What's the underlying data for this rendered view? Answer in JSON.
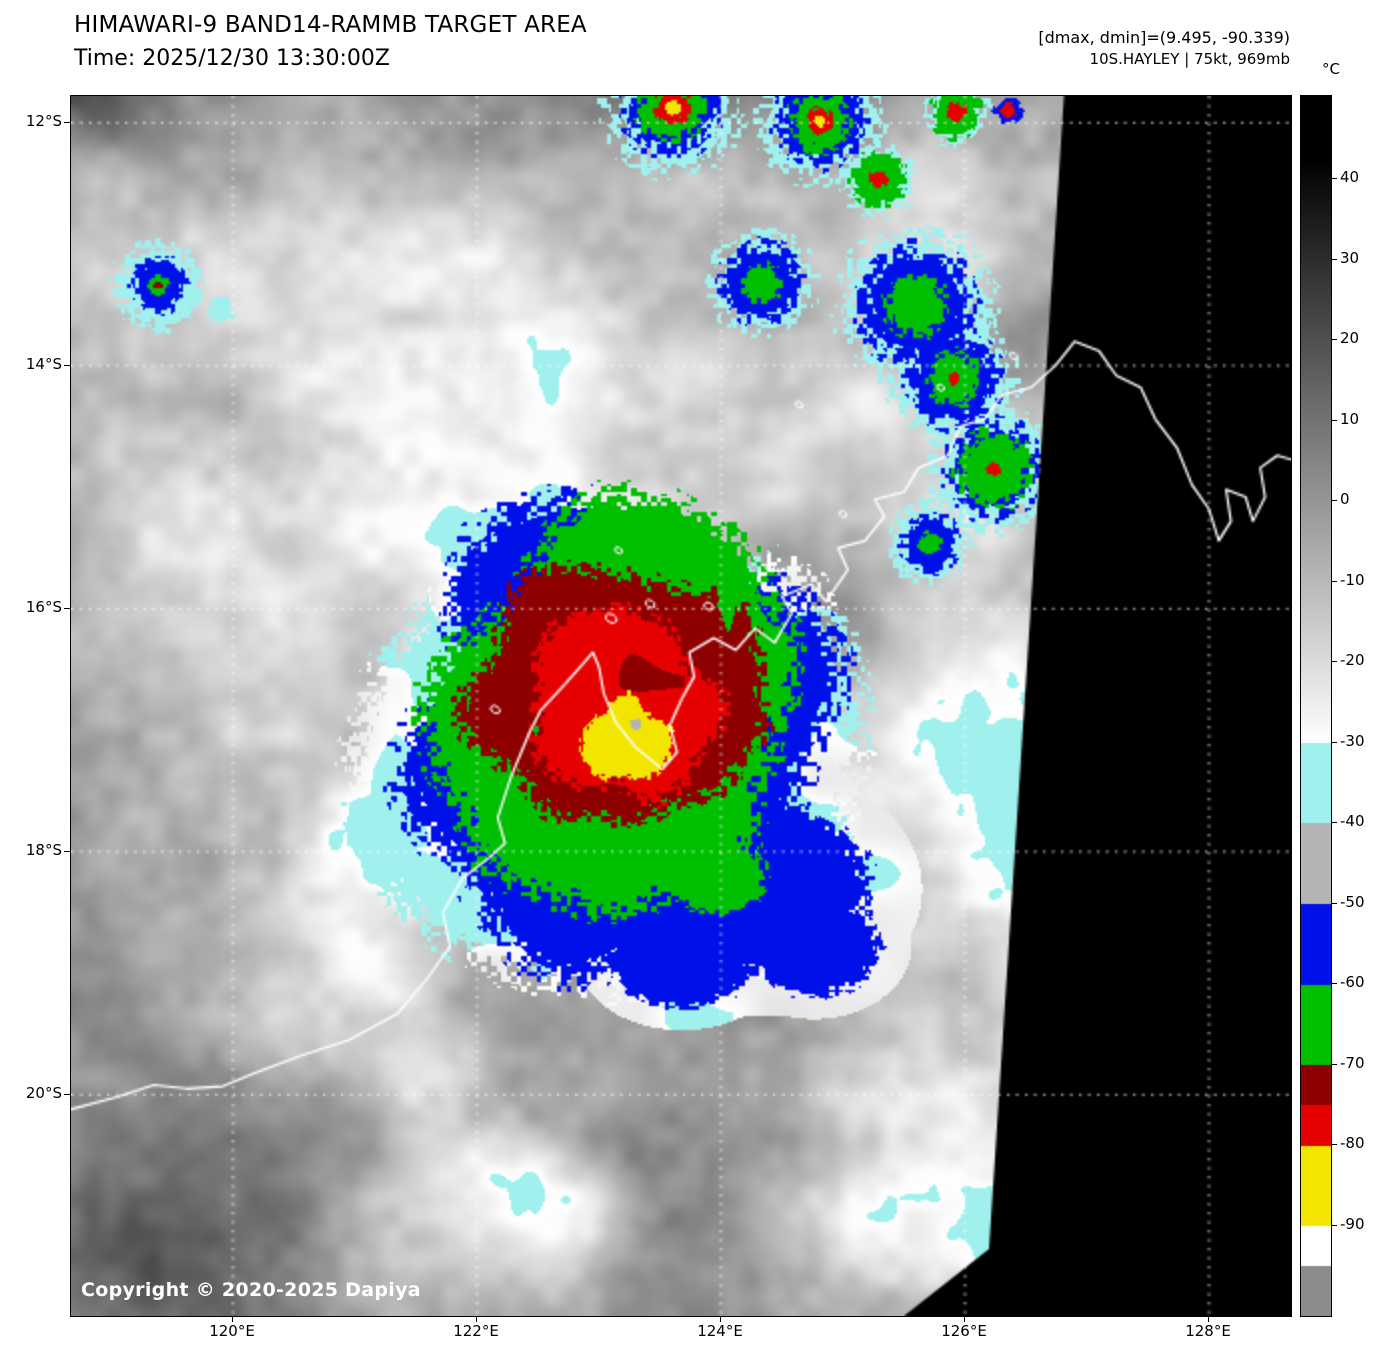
{
  "header": {
    "title": "HIMAWARI-9 BAND14-RAMMB TARGET AREA",
    "time_line": "Time: 2025/12/30 13:30:00Z",
    "dmax_dmin": "[dmax, dmin]=(9.495, -90.339)",
    "storm_info": "10S.HAYLEY | 75kt, 969mb"
  },
  "map": {
    "copyright": "Copyright © 2020-2025 Dapiya",
    "lat_tick_labels": [
      "12°S",
      "14°S",
      "16°S",
      "18°S",
      "20°S"
    ],
    "lon_tick_labels": [
      "120°E",
      "122°E",
      "124°E",
      "126°E",
      "128°E"
    ]
  },
  "colorbar": {
    "unit": "°C",
    "tick_values": [
      40,
      30,
      20,
      10,
      0,
      -10,
      -20,
      -30,
      -40,
      -50,
      -60,
      -70,
      -80,
      -90
    ],
    "segments": [
      {
        "from": 52,
        "to": 43,
        "color": "#000000"
      },
      {
        "from": 43,
        "to": -30,
        "type": "gradient",
        "color_start": "#000000",
        "color_end": "#ffffff"
      },
      {
        "from": -30,
        "to": -40,
        "color": "#a0f0ee"
      },
      {
        "from": -40,
        "to": -50,
        "color": "#b4b4b4"
      },
      {
        "from": -50,
        "to": -60,
        "color": "#0010e8"
      },
      {
        "from": -60,
        "to": -70,
        "color": "#00be00"
      },
      {
        "from": -70,
        "to": -75,
        "color": "#8e0000"
      },
      {
        "from": -75,
        "to": -80,
        "color": "#e60000"
      },
      {
        "from": -80,
        "to": -90,
        "color": "#f2e600"
      },
      {
        "from": -90,
        "to": -95,
        "color": "#ffffff"
      },
      {
        "from": -95,
        "to": -102,
        "color": "#8c8c8c"
      }
    ]
  }
}
